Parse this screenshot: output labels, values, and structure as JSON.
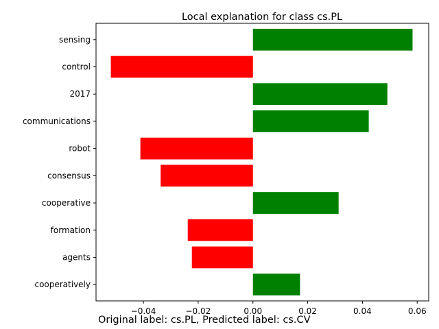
{
  "chart_data": {
    "type": "bar",
    "orientation": "horizontal",
    "title": "Local explanation for class cs.PL",
    "xlabel": "",
    "ylabel": "",
    "categories": [
      "sensing",
      "control",
      "2017",
      "communications",
      "robot",
      "consensus",
      "cooperative",
      "formation",
      "agents",
      "cooperatively"
    ],
    "values": [
      0.0583,
      -0.0519,
      0.0491,
      0.0423,
      -0.0411,
      -0.0337,
      0.0313,
      -0.0238,
      -0.0223,
      0.0172
    ],
    "xlim": [
      -0.0573,
      0.0642
    ],
    "xticks": [
      -0.04,
      -0.02,
      0.0,
      0.02,
      0.04,
      0.06
    ],
    "xtick_labels": [
      "−0.04",
      "−0.02",
      "0.00",
      "0.02",
      "0.04",
      "0.06"
    ],
    "positive_color": "#008000",
    "negative_color": "#ff0000",
    "grid": false,
    "legend": "none"
  },
  "footer": {
    "caption": "Original label: cs.PL, Predicted label: cs.CV"
  }
}
